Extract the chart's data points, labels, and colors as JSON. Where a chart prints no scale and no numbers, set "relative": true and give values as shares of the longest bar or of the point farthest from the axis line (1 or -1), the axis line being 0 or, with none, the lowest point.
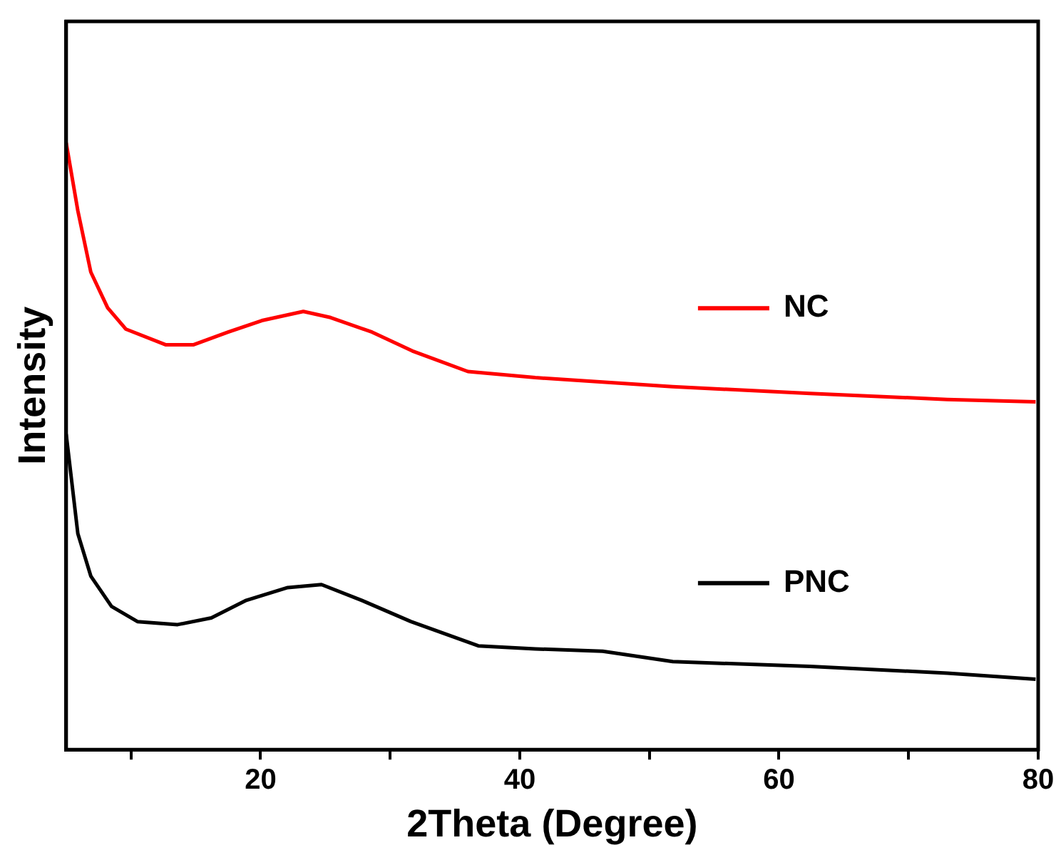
{
  "chart_data": {
    "type": "line",
    "relative": true,
    "xlabel": "2Theta (Degree)",
    "ylabel": "Intensity",
    "xlim": [
      5,
      80
    ],
    "xticks": [
      {
        "value": 10,
        "label": null
      },
      20,
      {
        "value": 30,
        "label": null
      },
      40,
      {
        "value": 50,
        "label": null
      },
      60,
      {
        "value": 70,
        "label": null
      },
      80
    ],
    "grid": false,
    "legend": "right",
    "marker": "none",
    "line_style": "solid",
    "series": [
      {
        "name": "NC",
        "color": "#ff0000",
        "x": [
          5,
          5.9,
          6.9,
          8.2,
          9.6,
          12.7,
          14.8,
          17.5,
          20.1,
          23.3,
          25.4,
          28.6,
          31.7,
          36,
          41.2,
          51.8,
          62.4,
          73,
          79.8
        ],
        "values": [
          1,
          0.888,
          0.787,
          0.728,
          0.693,
          0.667,
          0.667,
          0.688,
          0.707,
          0.722,
          0.712,
          0.688,
          0.657,
          0.623,
          0.613,
          0.598,
          0.587,
          0.577,
          0.573
        ]
      },
      {
        "name": "PNC",
        "color": "#000000",
        "x": [
          5,
          5.9,
          6.9,
          8.5,
          10.5,
          13.6,
          16.2,
          18.9,
          22.1,
          24.7,
          27.8,
          31.6,
          36.8,
          41.2,
          46.4,
          51.8,
          62.4,
          73,
          79.8
        ],
        "values": [
          0.52,
          0.356,
          0.286,
          0.236,
          0.211,
          0.206,
          0.217,
          0.246,
          0.267,
          0.272,
          0.246,
          0.211,
          0.171,
          0.166,
          0.162,
          0.145,
          0.137,
          0.126,
          0.116
        ]
      }
    ]
  }
}
